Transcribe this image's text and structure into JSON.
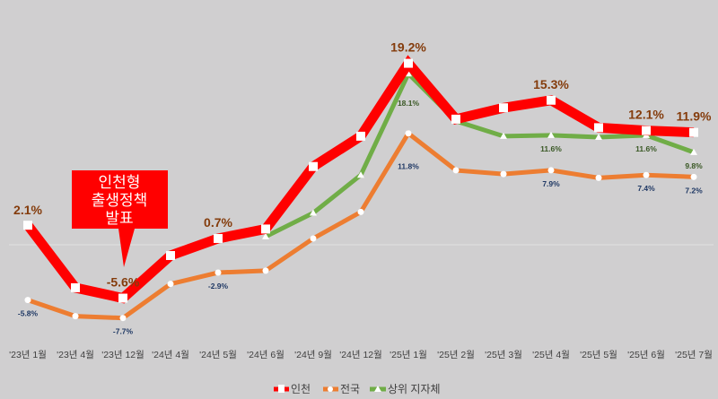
{
  "chart_data": {
    "type": "line",
    "title": "",
    "xlabel": "",
    "ylabel": "",
    "ylim": [
      -10,
      22
    ],
    "grid": false,
    "legend_position": "bottom",
    "categories": [
      "'23년 1월",
      "'23년 4월",
      "'23년 12월",
      "'24년 4월",
      "'24년 5월",
      "'24년 6월",
      "'24년 9월",
      "'24년 12월",
      "'25년 1월",
      "'25년 2월",
      "'25년 3월",
      "'25년 4월",
      "'25년 5월",
      "'25년 6월",
      "'25년 7월"
    ],
    "series": [
      {
        "name": "인천",
        "color": "#ff0000",
        "values": [
          2.1,
          -4.5,
          -5.6,
          -1.1,
          0.7,
          1.7,
          8.3,
          11.5,
          19.2,
          13.3,
          14.5,
          15.3,
          12.4,
          12.1,
          11.9
        ],
        "labels": [
          {
            "i": 0,
            "text": "2.1%"
          },
          {
            "i": 2,
            "text": "-5.6%"
          },
          {
            "i": 4,
            "text": "0.7%"
          },
          {
            "i": 8,
            "text": "19.2%"
          },
          {
            "i": 11,
            "text": "15.3%"
          },
          {
            "i": 13,
            "text": "12.1%"
          },
          {
            "i": 14,
            "text": "11.9%"
          }
        ]
      },
      {
        "name": "전국",
        "color": "#ed7d31",
        "values": [
          -5.8,
          -7.5,
          -7.7,
          -4.1,
          -2.9,
          -2.7,
          0.7,
          3.5,
          11.8,
          7.9,
          7.5,
          7.9,
          7.1,
          7.4,
          7.2
        ],
        "labels": [
          {
            "i": 0,
            "text": "-5.8%"
          },
          {
            "i": 2,
            "text": "-7.7%"
          },
          {
            "i": 4,
            "text": "-2.9%"
          },
          {
            "i": 8,
            "text": "11.8%"
          },
          {
            "i": 11,
            "text": "7.9%"
          },
          {
            "i": 13,
            "text": "7.4%"
          },
          {
            "i": 14,
            "text": "7.2%"
          }
        ]
      },
      {
        "name": "상위 지자체",
        "color": "#70ad47",
        "values": [
          null,
          null,
          null,
          null,
          null,
          0.9,
          3.4,
          7.4,
          18.1,
          13.1,
          11.5,
          11.6,
          11.4,
          11.6,
          9.8
        ],
        "labels": [
          {
            "i": 8,
            "text": "18.1%"
          },
          {
            "i": 11,
            "text": "11.6%"
          },
          {
            "i": 13,
            "text": "11.6%"
          },
          {
            "i": 14,
            "text": "9.8%"
          }
        ]
      }
    ],
    "annotations": [
      {
        "text_lines": [
          "인천형",
          "출생정책",
          "발표"
        ],
        "points_to": "'23년 12월"
      }
    ]
  }
}
